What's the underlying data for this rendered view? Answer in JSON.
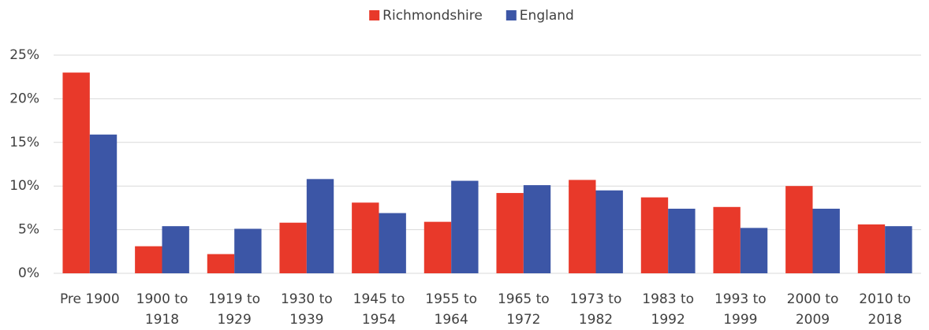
{
  "chart_data": {
    "type": "bar",
    "categories": [
      "Pre 1900",
      "1900 to 1918",
      "1919 to 1929",
      "1930 to 1939",
      "1945 to 1954",
      "1955 to 1964",
      "1965 to 1972",
      "1973 to 1982",
      "1983 to 1992",
      "1993 to 1999",
      "2000 to 2009",
      "2010 to 2018"
    ],
    "series": [
      {
        "name": "Richmondshire",
        "color": "#e8392a",
        "values": [
          23.0,
          3.1,
          2.2,
          5.8,
          8.1,
          5.9,
          9.2,
          10.7,
          8.7,
          7.6,
          10.0,
          5.6
        ]
      },
      {
        "name": "England",
        "color": "#3c56a6",
        "values": [
          15.9,
          5.4,
          5.1,
          10.8,
          6.9,
          10.6,
          10.1,
          9.5,
          7.4,
          5.2,
          7.4,
          5.4
        ]
      }
    ],
    "ylim": [
      0,
      25
    ],
    "yticks": [
      {
        "value": 0,
        "label": "0%"
      },
      {
        "value": 5,
        "label": "5%"
      },
      {
        "value": 10,
        "label": "10%"
      },
      {
        "value": 15,
        "label": "15%"
      },
      {
        "value": 20,
        "label": "20%"
      },
      {
        "value": 25,
        "label": "25%"
      }
    ],
    "grid": true,
    "legend": "top"
  }
}
